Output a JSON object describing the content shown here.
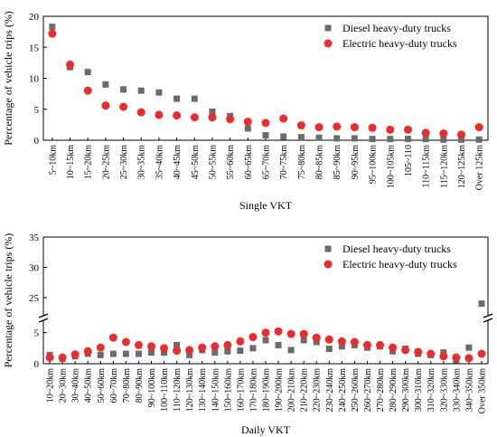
{
  "chart_data": [
    {
      "type": "scatter",
      "xlabel": "Single VKT",
      "ylabel": "Percentage of vehicle trips (%)",
      "ylim": [
        0,
        20
      ],
      "yticks": [
        0,
        5,
        10,
        15,
        20
      ],
      "grid": false,
      "legend_position": "top-right",
      "categories": [
        "5~10km",
        "10~15km",
        "15~20km",
        "20~25km",
        "25~30km",
        "30~35km",
        "35~40km",
        "40~45km",
        "45~50km",
        "50~55km",
        "55~60km",
        "60~65km",
        "65~70km",
        "70~75km",
        "75~80km",
        "80~85km",
        "85~90km",
        "90~95km",
        "95~100km",
        "100~105km",
        "105~110",
        "110~115km",
        "115~120km",
        "120~125km",
        "Over 125km"
      ],
      "series": [
        {
          "name": "Diesel heavy-duty trucks",
          "marker": "square",
          "color": "#6b6b6b",
          "values": [
            18.3,
            11.8,
            11.0,
            9.0,
            8.2,
            8.0,
            7.7,
            6.7,
            6.7,
            4.6,
            3.9,
            1.9,
            0.8,
            0.6,
            0.5,
            0.4,
            0.3,
            0.3,
            0.2,
            0.2,
            0.2,
            0.2,
            0.1,
            0.1,
            0.1
          ]
        },
        {
          "name": "Electric heavy-duty trucks",
          "marker": "circle",
          "color": "#ee2a2a",
          "values": [
            17.2,
            12.2,
            8.0,
            5.6,
            5.4,
            4.5,
            4.1,
            4.0,
            3.7,
            3.7,
            3.4,
            3.0,
            2.8,
            3.5,
            2.4,
            2.1,
            2.2,
            2.1,
            2.0,
            1.7,
            1.7,
            1.2,
            1.1,
            0.9,
            2.1
          ]
        }
      ]
    },
    {
      "type": "scatter",
      "xlabel": "Daily VKT",
      "ylabel": "Percentage of vehicle trips (%)",
      "ylim": [
        0,
        35
      ],
      "axis_break": [
        7,
        22
      ],
      "yticks": [
        0,
        5,
        25,
        30,
        35
      ],
      "grid": false,
      "legend_position": "top-right",
      "categories": [
        "10~20km",
        "20~30km",
        "30~40km",
        "40~50km",
        "50~60km",
        "60~70km",
        "70~80km",
        "80~90km",
        "90~100km",
        "100~110km",
        "110~120km",
        "120~130km",
        "130~140km",
        "140~150km",
        "150~160km",
        "160~170km",
        "170~180km",
        "180~190km",
        "190~200km",
        "200~210km",
        "210~220km",
        "220~230km",
        "230~240km",
        "240~250km",
        "250~260km",
        "260~270km",
        "270~280km",
        "280~290km",
        "290~300km",
        "300~310km",
        "310~320km",
        "320~330km",
        "330~340km",
        "340~350km",
        "Over 350km"
      ],
      "series": [
        {
          "name": "Diesel heavy-duty trucks",
          "marker": "square",
          "color": "#6b6b6b",
          "values": [
            1.4,
            0.8,
            1.2,
            1.6,
            1.4,
            1.6,
            1.6,
            1.6,
            1.8,
            1.8,
            3.0,
            1.4,
            2.2,
            1.8,
            2.0,
            2.1,
            2.5,
            3.8,
            3.0,
            2.2,
            3.8,
            3.5,
            2.4,
            2.8,
            3.0,
            2.6,
            2.8,
            2.0,
            2.4,
            1.6,
            1.4,
            1.8,
            0.6,
            2.6,
            24.0
          ]
        },
        {
          "name": "Electric heavy-duty trucks",
          "marker": "circle",
          "color": "#ee2a2a",
          "values": [
            1.0,
            1.0,
            1.5,
            2.0,
            2.6,
            4.2,
            3.5,
            3.0,
            2.8,
            2.5,
            2.1,
            2.2,
            2.6,
            2.8,
            3.0,
            3.6,
            4.3,
            5.0,
            5.2,
            4.8,
            4.8,
            4.2,
            3.9,
            3.6,
            3.5,
            3.0,
            3.0,
            2.6,
            2.2,
            1.9,
            1.6,
            1.2,
            1.0,
            0.9,
            1.6
          ]
        }
      ]
    }
  ]
}
